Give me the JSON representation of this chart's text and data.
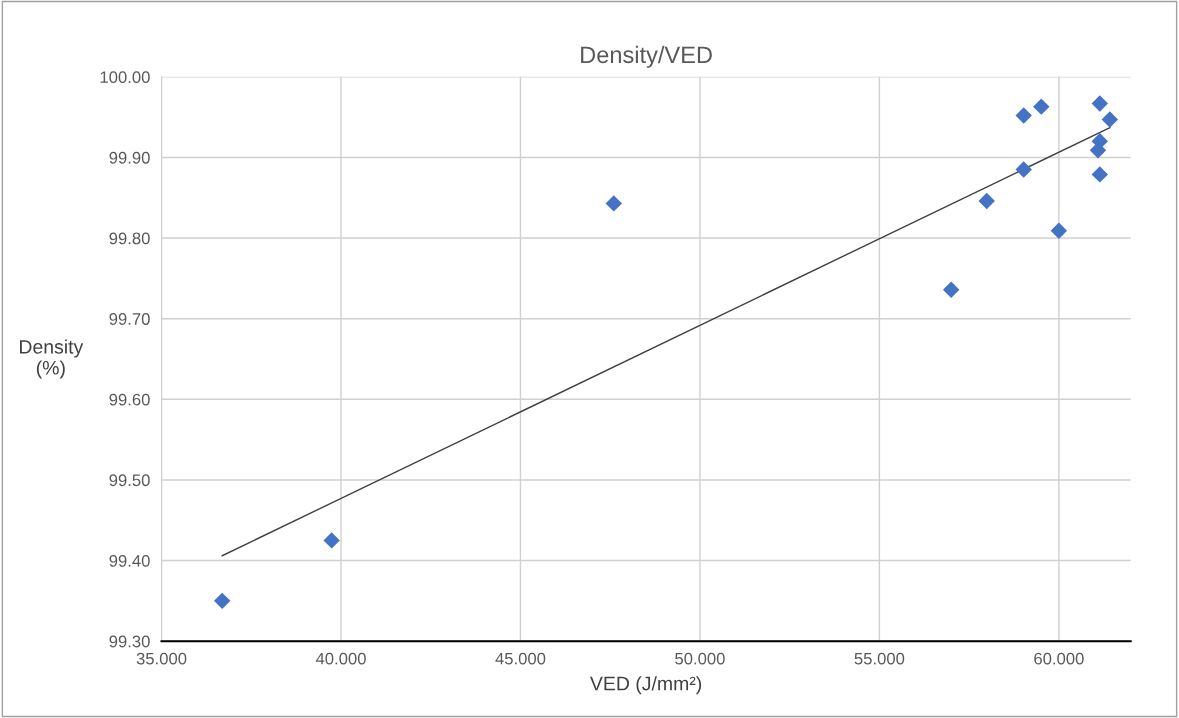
{
  "chart_data": {
    "type": "scatter",
    "title": "Density/VED",
    "xlabel": "VED (J/mm²)",
    "ylabel": "Density\n(%)",
    "series": [
      {
        "color": "#4472c4",
        "marker": "diamond",
        "x": [
          36.69,
          39.74,
          47.6,
          57.0,
          57.99,
          59.02,
          59.02,
          59.51,
          60.0,
          61.14,
          61.42,
          61.14,
          61.09,
          61.14
        ],
        "values": [
          99.35,
          99.425,
          99.843,
          99.736,
          99.846,
          99.885,
          99.952,
          99.963,
          99.809,
          99.967,
          99.947,
          99.92,
          99.909,
          99.879
        ]
      },
      {
        "type": "line",
        "color": "#404040",
        "marker": "none",
        "line_style": "solid",
        "x": [
          36.69,
          61.42
        ],
        "values": [
          99.406,
          99.937
        ]
      }
    ],
    "xlim": [
      35,
      62
    ],
    "ylim": [
      99.3,
      100.0
    ],
    "xticks": [
      {
        "value": 35,
        "label": "35.000"
      },
      {
        "value": 40,
        "label": "40.000"
      },
      {
        "value": 45,
        "label": "45.000"
      },
      {
        "value": 50,
        "label": "50.000"
      },
      {
        "value": 55,
        "label": "55.000"
      },
      {
        "value": 60,
        "label": "60.000"
      }
    ],
    "yticks": [
      {
        "value": 99.3,
        "label": "99.30"
      },
      {
        "value": 99.4,
        "label": "99.40"
      },
      {
        "value": 99.5,
        "label": "99.50"
      },
      {
        "value": 99.6,
        "label": "99.60"
      },
      {
        "value": 99.7,
        "label": "99.70"
      },
      {
        "value": 99.8,
        "label": "99.80"
      },
      {
        "value": 99.9,
        "label": "99.90"
      },
      {
        "value": 100.0,
        "label": "100.00"
      }
    ],
    "grid": true
  }
}
